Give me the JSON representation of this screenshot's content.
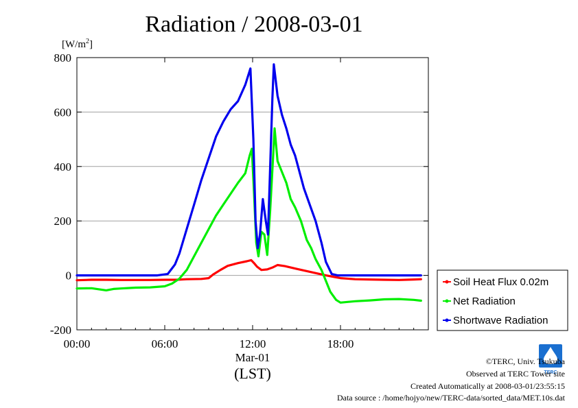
{
  "chart_data": {
    "type": "line",
    "title": "Radiation / 2008-03-01",
    "ylabel_unit": "[W/m",
    "ylabel_sup": "2",
    "ylabel_close": "]",
    "ylim": [
      -200,
      800
    ],
    "yticks": [
      800,
      600,
      400,
      200,
      0,
      -200
    ],
    "xlim": [
      0,
      24
    ],
    "xticks": [
      {
        "x": 0,
        "label": "00:00"
      },
      {
        "x": 6,
        "label": "06:00"
      },
      {
        "x": 12,
        "label": "12:00"
      },
      {
        "x": 18,
        "label": "18:00"
      }
    ],
    "xdate_label": "Mar-01",
    "xlabel": "(LST)",
    "grid": "horizontal",
    "legend_position": "right",
    "series": [
      {
        "name": "Soil Heat Flux 0.02m",
        "color": "#ff0000",
        "points": [
          [
            0,
            -18
          ],
          [
            1,
            -16
          ],
          [
            2,
            -16
          ],
          [
            3,
            -17
          ],
          [
            4,
            -17
          ],
          [
            5,
            -17
          ],
          [
            6,
            -16
          ],
          [
            6.8,
            -16
          ],
          [
            7.5,
            -14
          ],
          [
            8.5,
            -13
          ],
          [
            9,
            -10
          ],
          [
            9.3,
            3
          ],
          [
            9.8,
            20
          ],
          [
            10.3,
            35
          ],
          [
            11,
            45
          ],
          [
            11.6,
            52
          ],
          [
            11.9,
            56
          ],
          [
            12.1,
            45
          ],
          [
            12.3,
            32
          ],
          [
            12.6,
            20
          ],
          [
            13,
            22
          ],
          [
            13.4,
            30
          ],
          [
            13.7,
            38
          ],
          [
            14.2,
            34
          ],
          [
            15,
            24
          ],
          [
            16,
            12
          ],
          [
            17,
            0
          ],
          [
            17.6,
            -6
          ],
          [
            18,
            -10
          ],
          [
            19,
            -14
          ],
          [
            20,
            -15
          ],
          [
            21,
            -16
          ],
          [
            22,
            -17
          ],
          [
            23,
            -15
          ],
          [
            23.5,
            -14
          ]
        ]
      },
      {
        "name": "Net Radiation",
        "color": "#00ee00",
        "points": [
          [
            0,
            -48
          ],
          [
            1,
            -47
          ],
          [
            2,
            -55
          ],
          [
            2.5,
            -50
          ],
          [
            3,
            -48
          ],
          [
            4,
            -45
          ],
          [
            5,
            -44
          ],
          [
            6,
            -40
          ],
          [
            6.5,
            -30
          ],
          [
            7,
            -12
          ],
          [
            7.5,
            20
          ],
          [
            8,
            70
          ],
          [
            8.5,
            120
          ],
          [
            9,
            170
          ],
          [
            9.5,
            220
          ],
          [
            10,
            260
          ],
          [
            10.5,
            300
          ],
          [
            11,
            340
          ],
          [
            11.5,
            375
          ],
          [
            11.8,
            440
          ],
          [
            11.95,
            465
          ],
          [
            12.1,
            300
          ],
          [
            12.25,
            120
          ],
          [
            12.4,
            70
          ],
          [
            12.6,
            160
          ],
          [
            12.8,
            150
          ],
          [
            13,
            75
          ],
          [
            13.2,
            240
          ],
          [
            13.4,
            440
          ],
          [
            13.5,
            540
          ],
          [
            13.7,
            420
          ],
          [
            14,
            380
          ],
          [
            14.3,
            340
          ],
          [
            14.6,
            280
          ],
          [
            14.9,
            250
          ],
          [
            15.3,
            200
          ],
          [
            15.7,
            130
          ],
          [
            16,
            100
          ],
          [
            16.3,
            60
          ],
          [
            16.7,
            20
          ],
          [
            17,
            -20
          ],
          [
            17.3,
            -60
          ],
          [
            17.7,
            -90
          ],
          [
            18,
            -100
          ],
          [
            19,
            -95
          ],
          [
            20,
            -92
          ],
          [
            21,
            -88
          ],
          [
            22,
            -87
          ],
          [
            23,
            -90
          ],
          [
            23.5,
            -93
          ]
        ]
      },
      {
        "name": "Shortwave Radiation",
        "color": "#0000ee",
        "points": [
          [
            0,
            0
          ],
          [
            5.5,
            0
          ],
          [
            6.2,
            5
          ],
          [
            6.7,
            40
          ],
          [
            7,
            80
          ],
          [
            7.5,
            170
          ],
          [
            8,
            260
          ],
          [
            8.5,
            350
          ],
          [
            9,
            430
          ],
          [
            9.5,
            510
          ],
          [
            10,
            565
          ],
          [
            10.5,
            610
          ],
          [
            11,
            640
          ],
          [
            11.5,
            700
          ],
          [
            11.85,
            760
          ],
          [
            12.05,
            500
          ],
          [
            12.2,
            200
          ],
          [
            12.35,
            100
          ],
          [
            12.5,
            150
          ],
          [
            12.7,
            280
          ],
          [
            12.9,
            200
          ],
          [
            13.05,
            150
          ],
          [
            13.2,
            400
          ],
          [
            13.35,
            650
          ],
          [
            13.45,
            775
          ],
          [
            13.7,
            660
          ],
          [
            14,
            590
          ],
          [
            14.3,
            540
          ],
          [
            14.6,
            480
          ],
          [
            14.9,
            440
          ],
          [
            15.2,
            380
          ],
          [
            15.5,
            320
          ],
          [
            15.9,
            260
          ],
          [
            16.3,
            200
          ],
          [
            16.7,
            120
          ],
          [
            17,
            50
          ],
          [
            17.4,
            5
          ],
          [
            17.8,
            0
          ],
          [
            23.5,
            0
          ]
        ]
      }
    ]
  },
  "credits": {
    "copyright": "©TERC, Univ. Tsukuba",
    "observed": "Observed at TERC Tower site",
    "created": "Created Automatically at 2008-03-01/23:55:15",
    "source": "Data source : /home/hojyo/new/TERC-data/sorted_data/MET.10s.dat",
    "logo_text": "TERC"
  }
}
